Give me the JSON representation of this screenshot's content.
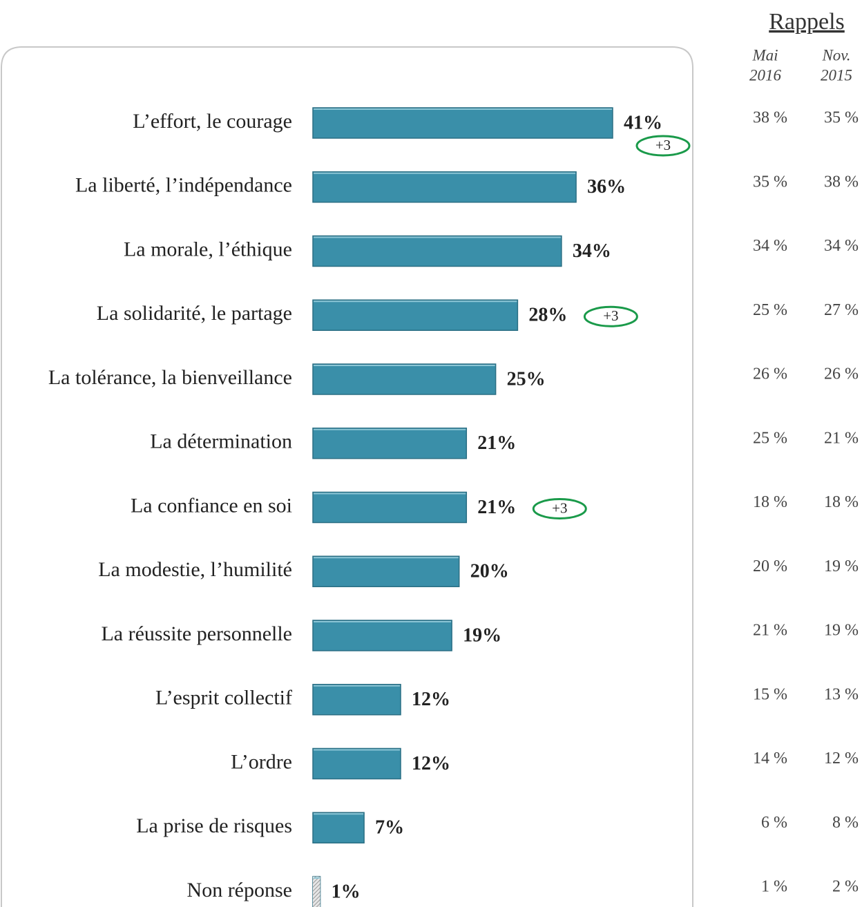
{
  "chart_data": {
    "type": "bar",
    "orientation": "horizontal",
    "categories": [
      "L’effort, le courage",
      "La liberté, l’indépendance",
      "La morale, l’éthique",
      "La solidarité, le partage",
      "La tolérance, la bienveillance",
      "La détermination",
      "La confiance en soi",
      "La modestie, l’humilité",
      "La réussite personnelle",
      "L’esprit collectif",
      "L’ordre",
      "La prise de risques",
      "Non réponse"
    ],
    "values": [
      41,
      36,
      34,
      28,
      25,
      21,
      21,
      20,
      19,
      12,
      12,
      7,
      1
    ],
    "value_labels": [
      "41%",
      "36%",
      "34%",
      "28%",
      "25%",
      "21%",
      "21%",
      "20%",
      "19%",
      "12%",
      "12%",
      "7%",
      "1%"
    ],
    "colors": [
      "#3a8fa9",
      "#3a8fa9",
      "#3a8fa9",
      "#3a8fa9",
      "#3a8fa9",
      "#3a8fa9",
      "#3a8fa9",
      "#3a8fa9",
      "#3a8fa9",
      "#3a8fa9",
      "#3a8fa9",
      "#3a8fa9",
      "#c4c4c4"
    ],
    "changes": [
      "+3",
      null,
      null,
      "+3",
      null,
      null,
      "+3",
      null,
      null,
      null,
      null,
      null,
      null
    ],
    "change_color": "#1a9a4a"
  },
  "rappels": {
    "title": "Rappels",
    "columns": [
      {
        "header": [
          "Mai",
          "2016"
        ],
        "values": [
          "38 %",
          "35 %",
          "34 %",
          "25 %",
          "26 %",
          "25 %",
          "18 %",
          "20 %",
          "21 %",
          "15 %",
          "14 %",
          "6 %",
          "1 %"
        ]
      },
      {
        "header": [
          "Nov.",
          "2015"
        ],
        "values": [
          "35 %",
          "38 %",
          "34 %",
          "27 %",
          "26 %",
          "21 %",
          "18 %",
          "19 %",
          "19 %",
          "13 %",
          "12 %",
          "8 %",
          "2 %"
        ]
      }
    ]
  }
}
